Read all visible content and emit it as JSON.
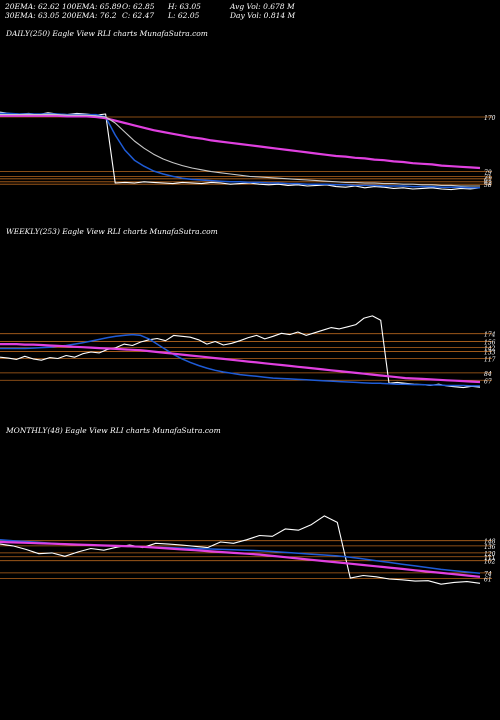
{
  "header": {
    "col1": [
      "20EMA: 62.62",
      "30EMA: 63.05"
    ],
    "col2": [
      "100EMA: 65.89",
      "200EMA: 76.2"
    ],
    "col3": [
      "O: 62.85",
      "C: 62.47"
    ],
    "col4": [
      "H: 63.05",
      "L: 62.05"
    ],
    "col5": [
      "Avg Vol: 0.678  M",
      "Day Vol: 0.814  M"
    ]
  },
  "colors": {
    "price": "#ffffff",
    "ema_fast": "#1e5bd6",
    "ema_slow": "#e040e0",
    "level": "#b5651d"
  },
  "chart_data": [
    {
      "type": "line",
      "label": "DAILY(250) Eagle  View  RLI charts MunafaSutra.com",
      "level_labels": [
        "170",
        "79",
        "71",
        "67",
        "62",
        "58"
      ],
      "levels": [
        170,
        79,
        71,
        67,
        62,
        58
      ],
      "ylim": [
        40,
        190
      ],
      "series": [
        {
          "role": "price",
          "values": [
            178,
            176,
            175,
            176,
            174,
            177,
            175,
            174,
            176,
            175,
            173,
            175,
            60,
            61,
            60,
            62,
            61,
            60,
            59,
            61,
            60,
            59,
            61,
            60,
            58,
            59,
            60,
            58,
            57,
            58,
            56,
            57,
            55,
            56,
            57,
            54,
            53,
            55,
            52,
            54,
            53,
            51,
            52,
            50,
            51,
            52,
            50,
            49,
            51,
            50,
            52
          ]
        },
        {
          "role": "ema_fast",
          "values": [
            176,
            176,
            175,
            175,
            175,
            175,
            175,
            174,
            174,
            174,
            174,
            170,
            140,
            115,
            98,
            88,
            80,
            75,
            71,
            68,
            66,
            65,
            64,
            63,
            62,
            62,
            61,
            61,
            60,
            60,
            59,
            59,
            58,
            58,
            58,
            57,
            57,
            56,
            56,
            56,
            55,
            55,
            55,
            54,
            54,
            54,
            53,
            53,
            53,
            52,
            52
          ]
        },
        {
          "role": "ema_slow",
          "values": [
            172,
            172,
            172,
            172,
            172,
            172,
            172,
            171,
            171,
            171,
            170,
            168,
            164,
            160,
            156,
            152,
            148,
            145,
            142,
            139,
            136,
            134,
            131,
            129,
            127,
            125,
            123,
            121,
            119,
            117,
            115,
            113,
            111,
            109,
            107,
            105,
            104,
            102,
            101,
            99,
            98,
            96,
            95,
            93,
            92,
            91,
            89,
            88,
            87,
            86,
            85
          ]
        },
        {
          "role": "ema_mid",
          "values": [
            174,
            174,
            174,
            174,
            174,
            174,
            174,
            173,
            173,
            173,
            172,
            170,
            160,
            145,
            130,
            118,
            108,
            100,
            94,
            89,
            85,
            82,
            79,
            77,
            75,
            73,
            71,
            70,
            69,
            68,
            67,
            66,
            65,
            64,
            63,
            62,
            61,
            61,
            60,
            60,
            59,
            59,
            58,
            58,
            57,
            57,
            56,
            56,
            55,
            55,
            55
          ]
        }
      ]
    },
    {
      "type": "line",
      "label": "WEEKLY(253) Eagle  View  RLI charts MunafaSutra.com",
      "level_labels": [
        "174",
        "156",
        "142",
        "133",
        "117",
        "84",
        "67"
      ],
      "levels": [
        174,
        156,
        142,
        133,
        117,
        84,
        67
      ],
      "ylim": [
        40,
        240
      ],
      "series": [
        {
          "role": "price",
          "values": [
            120,
            118,
            115,
            122,
            116,
            113,
            119,
            117,
            124,
            120,
            128,
            132,
            130,
            138,
            142,
            150,
            147,
            155,
            160,
            163,
            158,
            170,
            168,
            166,
            160,
            150,
            156,
            148,
            152,
            158,
            165,
            170,
            162,
            168,
            175,
            172,
            178,
            170,
            176,
            182,
            188,
            185,
            190,
            195,
            210,
            215,
            205,
            60,
            62,
            60,
            58,
            57,
            55,
            58,
            54,
            52,
            50,
            53,
            51
          ]
        },
        {
          "role": "ema_fast",
          "values": [
            140,
            140,
            140,
            140,
            141,
            142,
            143,
            145,
            147,
            150,
            153,
            157,
            161,
            165,
            168,
            170,
            172,
            170,
            162,
            150,
            138,
            126,
            116,
            108,
            101,
            95,
            90,
            86,
            83,
            80,
            78,
            76,
            74,
            72,
            71,
            70,
            69,
            68,
            67,
            66,
            65,
            64,
            63,
            62,
            61,
            60,
            60,
            59,
            58,
            58,
            57,
            57,
            56,
            56,
            55,
            55,
            55,
            54,
            54
          ]
        },
        {
          "role": "ema_slow",
          "values": [
            150,
            150,
            150,
            149,
            149,
            148,
            147,
            146,
            145,
            144,
            143,
            142,
            141,
            140,
            139,
            138,
            137,
            136,
            134,
            132,
            130,
            128,
            126,
            124,
            122,
            120,
            118,
            116,
            114,
            112,
            110,
            108,
            106,
            104,
            102,
            100,
            98,
            96,
            94,
            92,
            90,
            88,
            86,
            84,
            82,
            80,
            78,
            76,
            74,
            72,
            71,
            70,
            69,
            68,
            67,
            66,
            65,
            64,
            63
          ]
        }
      ]
    },
    {
      "type": "line",
      "label": "MONTHLY(48) Eagle  View  RLI charts MunafaSutra.com",
      "level_labels": [
        "148",
        "136",
        "120",
        "111",
        "102",
        "74",
        "61"
      ],
      "levels": [
        148,
        136,
        120,
        111,
        102,
        74,
        61
      ],
      "ylim": [
        30,
        230
      ],
      "series": [
        {
          "role": "price",
          "values": [
            140,
            136,
            128,
            118,
            120,
            112,
            122,
            130,
            126,
            133,
            138,
            132,
            142,
            140,
            138,
            135,
            132,
            145,
            142,
            150,
            160,
            158,
            175,
            172,
            185,
            205,
            190,
            62,
            68,
            65,
            60,
            58,
            55,
            56,
            48,
            52,
            54,
            50
          ]
        },
        {
          "role": "ema_fast",
          "values": [
            150,
            148,
            146,
            144,
            142,
            140,
            139,
            138,
            137,
            136,
            135,
            134,
            133,
            132,
            131,
            130,
            129,
            128,
            127,
            126,
            125,
            123,
            121,
            119,
            117,
            115,
            113,
            110,
            106,
            102,
            98,
            94,
            90,
            86,
            82,
            79,
            76,
            73
          ]
        },
        {
          "role": "ema_slow",
          "values": [
            145,
            144,
            143,
            142,
            141,
            140,
            139,
            138,
            137,
            136,
            135,
            134,
            132,
            130,
            128,
            126,
            124,
            122,
            120,
            118,
            116,
            113,
            110,
            107,
            104,
            101,
            98,
            95,
            92,
            89,
            86,
            83,
            80,
            77,
            74,
            71,
            68,
            65
          ]
        }
      ]
    }
  ]
}
